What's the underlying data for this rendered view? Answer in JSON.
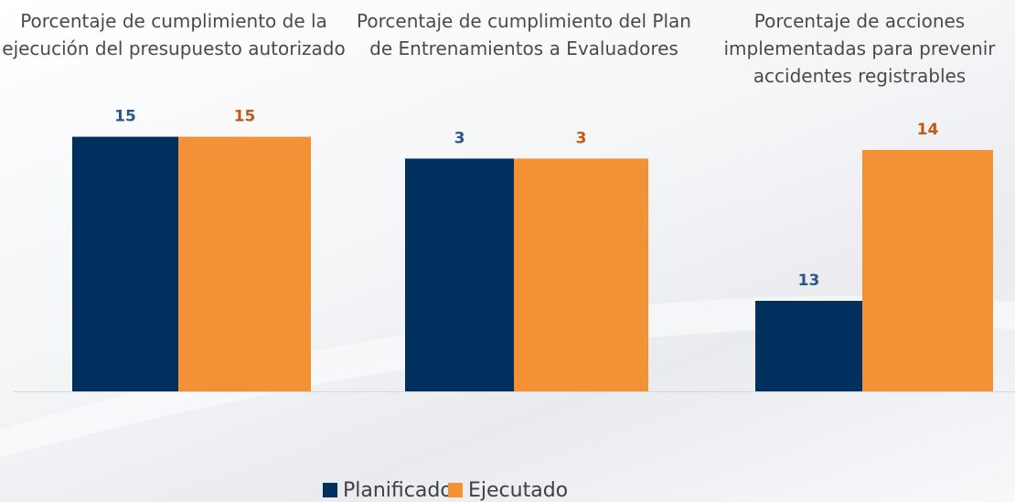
{
  "chart_data": [
    {
      "type": "bar",
      "title": "Porcentaje de cumplimiento de la ejecución del presupuesto autorizado",
      "series": [
        {
          "name": "Planificado",
          "color": "#00305e",
          "label_color": "#2b5687",
          "values": [
            15
          ]
        },
        {
          "name": "Ejecutado",
          "color": "#f29135",
          "label_color": "#c05a14",
          "values": [
            15
          ]
        }
      ],
      "ylim": [
        0,
        16
      ]
    },
    {
      "type": "bar",
      "title": "Porcentaje de cumplimiento del Plan de Entrenamientos a Evaluadores",
      "series": [
        {
          "name": "Planificado",
          "color": "#00305e",
          "label_color": "#2b5687",
          "values": [
            3
          ]
        },
        {
          "name": "Ejecutado",
          "color": "#f29135",
          "label_color": "#c05a14",
          "values": [
            3
          ]
        }
      ],
      "ylim": [
        0,
        3.5
      ]
    },
    {
      "type": "bar",
      "title": "Porcentaje de acciones implementadas para prevenir accidentes registrables",
      "series": [
        {
          "name": "Planificado",
          "color": "#00305e",
          "label_color": "#2b5687",
          "values": [
            13
          ]
        },
        {
          "name": "Ejecutado",
          "color": "#f29135",
          "label_color": "#c05a14",
          "values": [
            14
          ]
        }
      ],
      "ylim": [
        12.4,
        14.2
      ]
    }
  ]
}
